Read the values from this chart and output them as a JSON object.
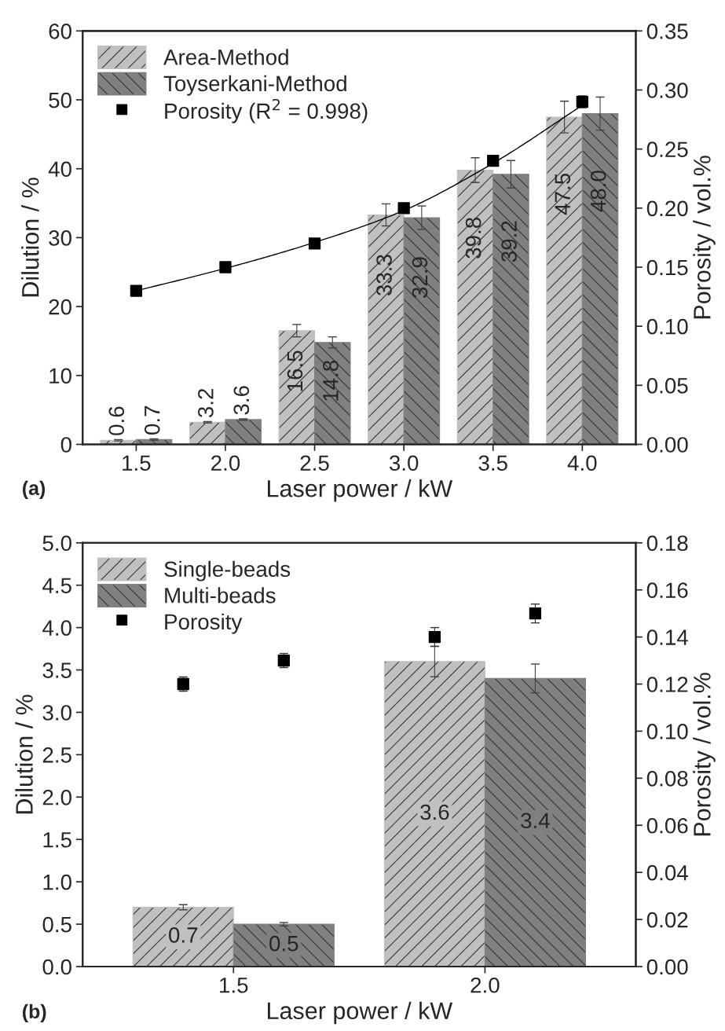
{
  "chart_data": [
    {
      "type": "bar",
      "xlabel": "Laser power / kW",
      "ylabel": "Dilution / %",
      "y2label": "Porosity / vol.%",
      "categories": [
        "1.5",
        "2.0",
        "2.5",
        "3.0",
        "3.5",
        "4.0"
      ],
      "series": [
        {
          "name": "Area-Method",
          "color": "#c0c0c0",
          "values": [
            0.6,
            3.2,
            16.5,
            33.3,
            39.8,
            47.5
          ],
          "value_labels": [
            "0.6",
            "3.2",
            "16.5",
            "33.3",
            "39.8",
            "47.5"
          ],
          "errors": [
            0.1,
            0.1,
            0.9,
            1.6,
            1.8,
            2.3
          ]
        },
        {
          "name": "Toyserkani-Method",
          "color": "#808080",
          "values": [
            0.7,
            3.6,
            14.8,
            32.9,
            39.2,
            48.0
          ],
          "value_labels": [
            "0.7",
            "3.6",
            "14.8",
            "32.9",
            "39.2",
            "48.0"
          ],
          "errors": [
            0.1,
            0.1,
            0.8,
            1.7,
            2.0,
            2.4
          ]
        },
        {
          "type": "scatter",
          "name": "Porosity (R$^{2}$ = 0.998)",
          "color": "#000000",
          "axis": "y2",
          "marker": "square",
          "x": [
            "1.5",
            "2.0",
            "2.5",
            "3.0",
            "3.5",
            "4.0"
          ],
          "values": [
            0.13,
            0.15,
            0.17,
            0.2,
            0.24,
            0.29
          ],
          "errors": [
            0.002,
            0.002,
            0.004,
            0.004,
            0.004,
            0.005
          ]
        },
        {
          "type": "line",
          "color": "#000000",
          "axis": "y2",
          "marker": "none",
          "x": [
            "1.5",
            "2.0",
            "2.5",
            "3.0",
            "3.5",
            "4.0"
          ],
          "values": [
            0.13,
            0.149,
            0.171,
            0.198,
            0.238,
            0.287
          ]
        }
      ],
      "ylim": [
        0,
        60
      ],
      "yticks": [
        0,
        10,
        20,
        30,
        40,
        50,
        60
      ],
      "y2lim": [
        0,
        0.35
      ],
      "y2ticks": [
        {
          "value": 0,
          "label": "0.00"
        },
        0.05,
        {
          "value": 0.1,
          "label": "0.10"
        },
        0.15,
        {
          "value": 0.2,
          "label": "0.20"
        },
        0.25,
        {
          "value": 0.3,
          "label": "0.30"
        },
        0.35
      ],
      "legend": "top left",
      "grid": false,
      "annotations": [
        "(a)"
      ]
    },
    {
      "type": "bar",
      "xlabel": "Laser power / kW",
      "ylabel": "Dilution / %",
      "y2label": "Porosity / vol.%",
      "categories": [
        "1.5",
        "2.0"
      ],
      "series": [
        {
          "name": "Single-beads",
          "color": "#c0c0c0",
          "values": [
            0.7,
            3.6
          ],
          "value_labels": [
            "0.7",
            "3.6"
          ],
          "errors": [
            0.03,
            0.18
          ]
        },
        {
          "name": "Multi-beads",
          "color": "#808080",
          "values": [
            0.5,
            3.4
          ],
          "value_labels": [
            "0.5",
            "3.4"
          ],
          "errors": [
            0.02,
            0.17
          ]
        },
        {
          "type": "scatter",
          "name": "Porosity",
          "color": "#000000",
          "axis": "y2",
          "marker": "square",
          "x": [
            "1.5",
            "2.0"
          ],
          "values": [
            0.12,
            0.14
          ],
          "errors": [
            0.003,
            0.004
          ]
        },
        {
          "type": "scatter",
          "color": "#000000",
          "axis": "y2",
          "marker": "square",
          "x": [
            "1.5",
            "2.0"
          ],
          "values": [
            0.13,
            0.15
          ],
          "errors": [
            0.003,
            0.004
          ]
        }
      ],
      "ylim": [
        0,
        5
      ],
      "yticks": [
        {
          "value": 0,
          "label": "0.0"
        },
        0.5,
        {
          "value": 1,
          "label": "1.0"
        },
        1.5,
        {
          "value": 2,
          "label": "2.0"
        },
        2.5,
        {
          "value": 3,
          "label": "3.0"
        },
        3.5,
        {
          "value": 4,
          "label": "4.0"
        },
        4.5,
        {
          "value": 5,
          "label": "5.0"
        }
      ],
      "y2lim": [
        0,
        0.18
      ],
      "y2ticks": [
        {
          "value": 0,
          "label": "0.00"
        },
        0.02,
        0.04,
        0.06,
        0.08,
        {
          "value": 0.1,
          "label": "0.10"
        },
        0.12,
        0.14,
        0.16,
        0.18
      ],
      "legend": "top left",
      "grid": false,
      "annotations": [
        "(b)"
      ]
    }
  ]
}
